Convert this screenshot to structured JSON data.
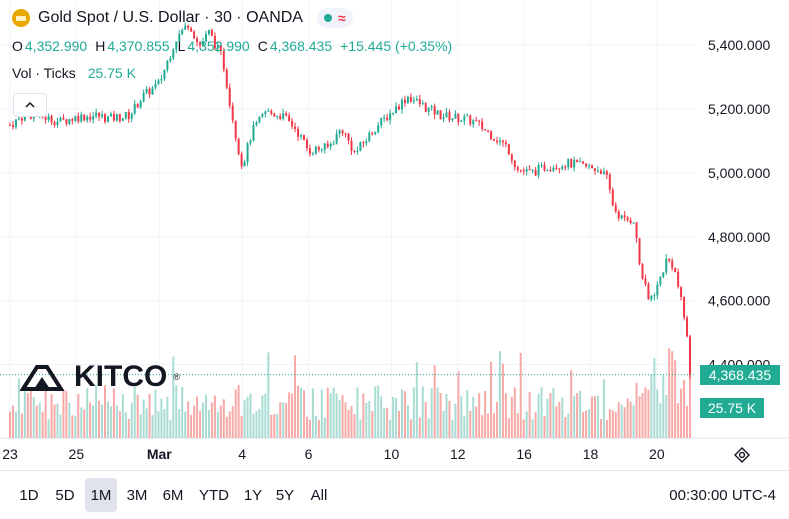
{
  "header": {
    "title": "Gold Spot / U.S. Dollar · 30 · OANDA",
    "wave_glyph": "≈"
  },
  "ohlc": {
    "o_label": "O",
    "o_value": "4,352.990",
    "h_label": "H",
    "h_value": "4,370.855",
    "l_label": "L",
    "l_value": "4,352.990",
    "c_label": "C",
    "c_value": "4,368.435",
    "change": "+15.445 (+0.35%)"
  },
  "volume": {
    "label": "Vol · Ticks",
    "value": "25.75 K"
  },
  "price_tags": {
    "last_price": "4,368.435",
    "last_volume": "25.75 K"
  },
  "branding": {
    "logo_text": "KITCO",
    "registered": "®"
  },
  "timeframes": [
    "1D",
    "5D",
    "1M",
    "3M",
    "6M",
    "YTD",
    "1Y",
    "5Y",
    "All"
  ],
  "active_timeframe": "1M",
  "timezone": "00:30:00 UTC-4",
  "colors": {
    "up": "#22ab94",
    "down": "#f23645",
    "up_volume": "#a8dcd3",
    "down_volume": "#f7a9a7",
    "grid": "#f0f3fa",
    "text": "#131722"
  },
  "chart_data": {
    "type": "candlestick",
    "title": "Gold Spot / U.S. Dollar · 30 · OANDA",
    "ylim": [
      4170,
      5510
    ],
    "y_ticks": [
      4400,
      4600,
      4800,
      5000,
      5200,
      5400
    ],
    "y_tick_labels": [
      "4,400.000",
      "4,600.000",
      "4,800.000",
      "5,000.000",
      "5,200.000",
      "5,400.000"
    ],
    "x_ticks": [
      "23",
      "25",
      "Mar",
      "4",
      "6",
      "10",
      "12",
      "16",
      "18",
      "20"
    ],
    "x_tick_units": [
      0,
      2,
      4.5,
      7,
      9,
      11.5,
      13.5,
      15.5,
      17.5,
      19.5
    ],
    "x_range": [
      0,
      20.5
    ],
    "last_close": 4368.435,
    "close_path": [
      [
        0,
        5150
      ],
      [
        0.5,
        5185
      ],
      [
        1,
        5175
      ],
      [
        1.5,
        5160
      ],
      [
        2,
        5175
      ],
      [
        2.6,
        5180
      ],
      [
        3,
        5170
      ],
      [
        3.6,
        5180
      ],
      [
        4,
        5240
      ],
      [
        4.5,
        5280
      ],
      [
        5,
        5420
      ],
      [
        5.4,
        5470
      ],
      [
        5.7,
        5395
      ],
      [
        6,
        5440
      ],
      [
        6.4,
        5360
      ],
      [
        6.8,
        5120
      ],
      [
        7,
        5020
      ],
      [
        7.3,
        5130
      ],
      [
        7.7,
        5190
      ],
      [
        8.2,
        5180
      ],
      [
        8.6,
        5140
      ],
      [
        9,
        5070
      ],
      [
        9.6,
        5080
      ],
      [
        10,
        5140
      ],
      [
        10.4,
        5060
      ],
      [
        11,
        5140
      ],
      [
        11.6,
        5200
      ],
      [
        12,
        5240
      ],
      [
        12.6,
        5200
      ],
      [
        13,
        5180
      ],
      [
        13.6,
        5170
      ],
      [
        14,
        5160
      ],
      [
        14.5,
        5120
      ],
      [
        15,
        5080
      ],
      [
        15.3,
        5010
      ],
      [
        15.7,
        5000
      ],
      [
        16.2,
        5020
      ],
      [
        16.8,
        5030
      ],
      [
        17.3,
        5020
      ],
      [
        17.8,
        5010
      ],
      [
        18,
        4980
      ],
      [
        18.2,
        4890
      ],
      [
        18.5,
        4850
      ],
      [
        18.8,
        4855
      ],
      [
        19,
        4700
      ],
      [
        19.25,
        4600
      ],
      [
        19.5,
        4640
      ],
      [
        19.8,
        4730
      ],
      [
        20,
        4710
      ],
      [
        20.15,
        4640
      ],
      [
        20.3,
        4560
      ],
      [
        20.45,
        4470
      ],
      [
        20.5,
        4368
      ]
    ],
    "volume_ylim": [
      0,
      110
    ],
    "volume_note": "Vol · Ticks histogram, latest 25.75 K"
  }
}
